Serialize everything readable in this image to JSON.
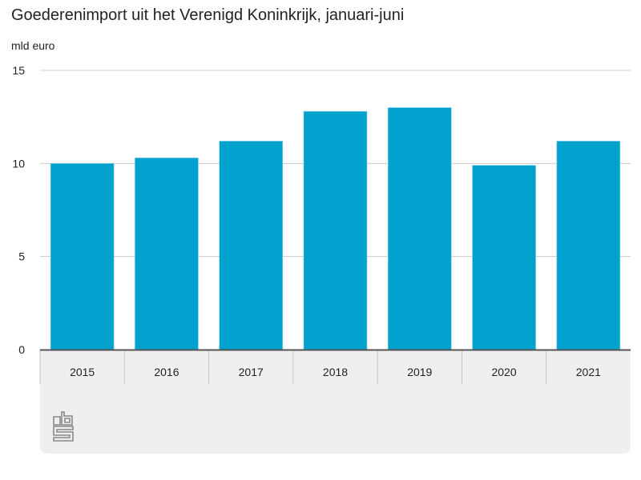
{
  "title": "Goederenimport uit het Verenigd Koninkrijk, januari-juni",
  "unit_label": "mld euro",
  "logo_text": "cbs",
  "colors": {
    "bar": "#00a1cd",
    "grid": "#cccccc",
    "panel": "#efefef"
  },
  "chart_data": {
    "type": "bar",
    "title": "Goederenimport uit het Verenigd Koninkrijk, januari-juni",
    "xlabel": "",
    "ylabel": "mld euro",
    "categories": [
      "2015",
      "2016",
      "2017",
      "2018",
      "2019",
      "2020",
      "2021"
    ],
    "values": [
      10.0,
      10.3,
      11.2,
      12.8,
      13.0,
      9.9,
      11.2
    ],
    "ylim": [
      0,
      15
    ],
    "yticks": [
      0,
      5,
      10,
      15
    ],
    "grid": true,
    "legend": "none"
  }
}
